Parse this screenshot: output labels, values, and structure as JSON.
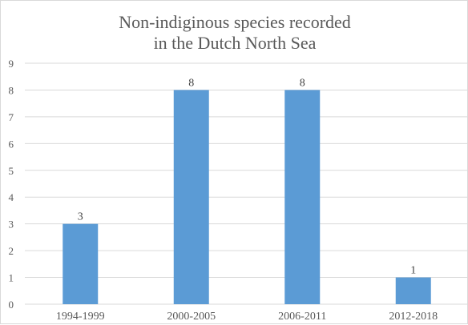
{
  "chart_data": {
    "type": "bar",
    "title": "Non-indiginous species recorded in the Dutch North Sea",
    "title_lines": [
      "Non-indiginous species recorded",
      "in the Dutch North Sea"
    ],
    "categories": [
      "1994-1999",
      "2000-2005",
      "2006-2011",
      "2012-2018"
    ],
    "values": [
      3,
      8,
      8,
      1
    ],
    "data_labels": [
      "3",
      "8",
      "8",
      "1"
    ],
    "ylim": [
      0,
      9
    ],
    "yticks": [
      0,
      1,
      2,
      3,
      4,
      5,
      6,
      7,
      8,
      9
    ],
    "xlabel": "",
    "ylabel": "",
    "grid": true,
    "legend": "none",
    "colors": {
      "bar": "#5b9bd5",
      "grid": "#d9d9d9",
      "text": "#595959"
    }
  }
}
